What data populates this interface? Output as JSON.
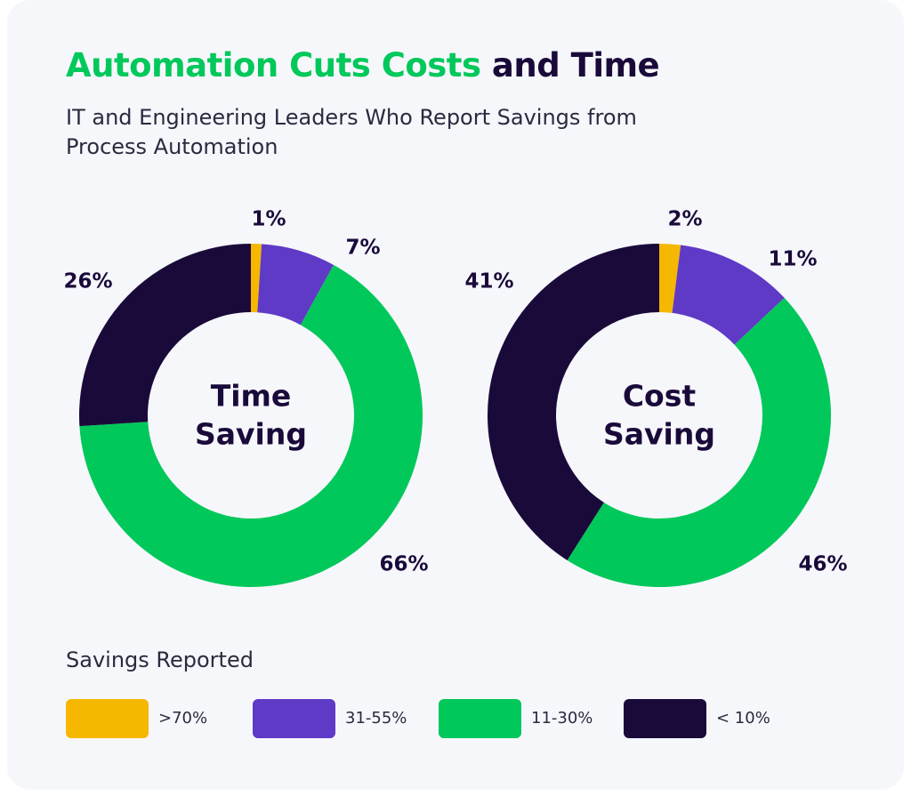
{
  "header": {
    "title_accent": "Automation Cuts Costs",
    "title_rest": "and Time",
    "subtitle": "IT and Engineering Leaders Who Report Savings from Process Automation"
  },
  "colors": {
    "accent_green": "#00c85a",
    "navy": "#1a0a3a",
    "text": "#2b2a3f",
    "background": "#f6f7fb"
  },
  "legend": {
    "title": "Savings Reported",
    "items": [
      {
        "label": ">70%",
        "color": "#f5b700"
      },
      {
        "label": "31-55%",
        "color": "#5e3ac6"
      },
      {
        "label": "11-30%",
        "color": "#00c85a"
      },
      {
        "label": "< 10%",
        "color": "#1a0a3a"
      }
    ]
  },
  "chart_data": [
    {
      "type": "pie",
      "style": "donut",
      "center_label": [
        "Time",
        "Saving"
      ],
      "categories": [
        ">70%",
        "31-55%",
        "11-30%",
        "< 10%"
      ],
      "values": [
        1,
        7,
        66,
        26
      ],
      "labels": [
        "1%",
        "7%",
        "66%",
        "26%"
      ],
      "colors": [
        "#f5b700",
        "#5e3ac6",
        "#00c85a",
        "#1a0a3a"
      ]
    },
    {
      "type": "pie",
      "style": "donut",
      "center_label": [
        "Cost",
        "Saving"
      ],
      "categories": [
        ">70%",
        "31-55%",
        "11-30%",
        "< 10%"
      ],
      "values": [
        2,
        11,
        46,
        41
      ],
      "labels": [
        "2%",
        "11%",
        "46%",
        "41%"
      ],
      "colors": [
        "#f5b700",
        "#5e3ac6",
        "#00c85a",
        "#1a0a3a"
      ]
    }
  ]
}
